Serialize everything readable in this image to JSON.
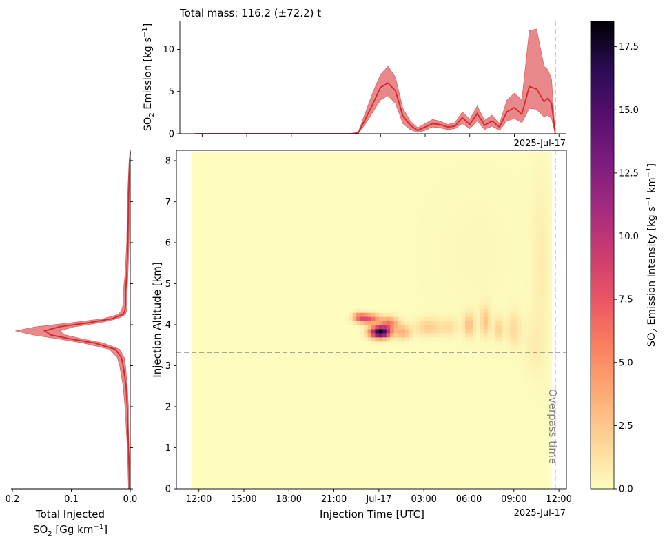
{
  "chart_data": [
    {
      "id": "top",
      "type": "area",
      "title": "Total mass: 116.2 (±72.2) t",
      "ylabel_main": "SO",
      "ylabel_sub": "2",
      "ylabel_rest": " Emission [kg s",
      "ylabel_sup": "−1",
      "ylabel_end": "]",
      "xlim": [
        10.5,
        36.5
      ],
      "ylim": [
        0,
        13.3
      ],
      "yticks": [
        0,
        5,
        10
      ],
      "date_label": "2025-Jul-17",
      "series": [
        {
          "name": "",
          "x": [
            11.5,
            12,
            13,
            14,
            15,
            16,
            17,
            18,
            19,
            20,
            21,
            22,
            22.5,
            23,
            23.5,
            24,
            24.5,
            25,
            25.5,
            26,
            26.5,
            27,
            27.5,
            28,
            28.5,
            29,
            29.5,
            30,
            30.5,
            31,
            31.5,
            32,
            32.5,
            33,
            33.5,
            34,
            34.5,
            35,
            35.25,
            35.5,
            35.75
          ],
          "mean": [
            0,
            0,
            0,
            0,
            0,
            0,
            0,
            0,
            0,
            0,
            0,
            0,
            0.1,
            1.8,
            3.6,
            5.5,
            6.0,
            5.1,
            2.1,
            1.0,
            0.4,
            0.8,
            1.2,
            1.1,
            0.8,
            0.9,
            1.9,
            1.1,
            2.4,
            1.0,
            1.5,
            0.8,
            2.6,
            3.1,
            2.3,
            5.6,
            5.3,
            3.8,
            4.2,
            3.6,
            0
          ],
          "lower": [
            0,
            0,
            0,
            0,
            0,
            0,
            0,
            0,
            0,
            0,
            0,
            0,
            0.05,
            1.2,
            2.6,
            4.0,
            4.5,
            3.6,
            1.2,
            0.5,
            0.15,
            0.4,
            0.8,
            0.7,
            0.5,
            0.6,
            1.2,
            0.6,
            1.5,
            0.5,
            0.9,
            0.4,
            1.5,
            1.8,
            1.3,
            3.0,
            2.9,
            2.0,
            2.2,
            1.8,
            0
          ],
          "upper": [
            0,
            0,
            0,
            0,
            0,
            0,
            0,
            0,
            0,
            0,
            0,
            0,
            0.2,
            2.6,
            5.0,
            7.0,
            8.0,
            6.7,
            3.0,
            1.5,
            0.7,
            1.2,
            1.7,
            1.5,
            1.1,
            1.3,
            2.6,
            1.7,
            3.3,
            1.6,
            2.2,
            1.2,
            4.0,
            4.8,
            4.0,
            12.2,
            12.4,
            8.0,
            7.6,
            6.5,
            0
          ]
        }
      ],
      "colors": {
        "mean": "#d62728",
        "band": "#e8888a"
      }
    },
    {
      "id": "heatmap",
      "type": "heatmap",
      "xlabel": "Injection Time [UTC]",
      "ylabel": "Injection Altitude [km]",
      "xlim": [
        10.5,
        36.5
      ],
      "ylim": [
        0,
        8.25
      ],
      "xticks": [
        {
          "v": 12,
          "label": "12:00"
        },
        {
          "v": 15,
          "label": "15:00"
        },
        {
          "v": 18,
          "label": "18:00"
        },
        {
          "v": 21,
          "label": "21:00"
        },
        {
          "v": 24,
          "label": "Jul-17"
        },
        {
          "v": 27,
          "label": "03:00"
        },
        {
          "v": 30,
          "label": "06:00"
        },
        {
          "v": 33,
          "label": "09:00"
        },
        {
          "v": 36,
          "label": "12:00"
        }
      ],
      "yticks": [
        0,
        1,
        2,
        3,
        4,
        5,
        6,
        7,
        8
      ],
      "date_label": "2025-Jul-17",
      "extent_x": [
        11.5,
        35.3
      ],
      "extent_y": [
        0,
        8.2
      ],
      "overpass_time": 35.75,
      "overpass_label": "Overpass time",
      "reference_altitude": 3.33,
      "blobs": [
        {
          "x": 24.1,
          "y": 3.83,
          "sx": 0.45,
          "sy": 0.1,
          "v": 18.5
        },
        {
          "x": 23.3,
          "y": 4.15,
          "sx": 0.5,
          "sy": 0.08,
          "v": 7.5
        },
        {
          "x": 22.7,
          "y": 4.2,
          "sx": 0.3,
          "sy": 0.07,
          "v": 4.5
        },
        {
          "x": 24.7,
          "y": 4.05,
          "sx": 0.4,
          "sy": 0.1,
          "v": 5.5
        },
        {
          "x": 25.6,
          "y": 3.83,
          "sx": 0.35,
          "sy": 0.12,
          "v": 3.5
        },
        {
          "x": 27.3,
          "y": 3.95,
          "sx": 0.6,
          "sy": 0.15,
          "v": 2.2
        },
        {
          "x": 28.7,
          "y": 3.95,
          "sx": 0.4,
          "sy": 0.15,
          "v": 1.3
        },
        {
          "x": 30.0,
          "y": 4.0,
          "sx": 0.25,
          "sy": 0.2,
          "v": 2.8
        },
        {
          "x": 31.1,
          "y": 4.1,
          "sx": 0.22,
          "sy": 0.25,
          "v": 2.6
        },
        {
          "x": 32.0,
          "y": 3.9,
          "sx": 0.22,
          "sy": 0.2,
          "v": 2.0
        },
        {
          "x": 33.0,
          "y": 3.9,
          "sx": 0.3,
          "sy": 0.3,
          "v": 1.6
        },
        {
          "x": 34.3,
          "y": 3.5,
          "sx": 0.5,
          "sy": 0.5,
          "v": 0.6
        },
        {
          "x": 34.8,
          "y": 5.5,
          "sx": 0.45,
          "sy": 1.6,
          "v": 0.7
        },
        {
          "x": 30.5,
          "y": 5.8,
          "sx": 2.5,
          "sy": 1.4,
          "v": 0.25
        }
      ]
    },
    {
      "id": "left",
      "type": "line",
      "xlabel_line1": "Total Injected",
      "xlabel_main": "SO",
      "xlabel_sub": "2",
      "xlabel_rest": " [Gg km",
      "xlabel_sup": "−1",
      "xlabel_end": "]",
      "xlim": [
        0.2,
        0.0
      ],
      "ylim": [
        0,
        8.25
      ],
      "xticks": [
        {
          "v": 0.2,
          "label": "0.2"
        },
        {
          "v": 0.1,
          "label": "0.1"
        },
        {
          "v": 0.0,
          "label": "0.0"
        }
      ],
      "yticks": [
        0,
        1,
        2,
        3,
        4,
        5,
        6,
        7,
        8
      ],
      "series": [
        {
          "name": "",
          "y": [
            0,
            0.5,
            1,
            1.5,
            2,
            2.5,
            3,
            3.2,
            3.4,
            3.55,
            3.65,
            3.75,
            3.85,
            3.95,
            4.05,
            4.15,
            4.25,
            4.35,
            4.5,
            4.8,
            5.2,
            6,
            7,
            8,
            8.2
          ],
          "mean": [
            0.001,
            0.002,
            0.003,
            0.004,
            0.005,
            0.007,
            0.012,
            0.015,
            0.025,
            0.06,
            0.1,
            0.135,
            0.145,
            0.12,
            0.07,
            0.03,
            0.012,
            0.009,
            0.008,
            0.008,
            0.006,
            0.004,
            0.003,
            0.001,
            0
          ],
          "lower": [
            0,
            0.001,
            0.002,
            0.003,
            0.003,
            0.005,
            0.008,
            0.01,
            0.018,
            0.045,
            0.08,
            0.11,
            0.12,
            0.095,
            0.05,
            0.02,
            0.008,
            0.006,
            0.005,
            0.005,
            0.004,
            0.002,
            0.001,
            0,
            0
          ],
          "upper": [
            0.003,
            0.004,
            0.005,
            0.007,
            0.009,
            0.012,
            0.018,
            0.022,
            0.035,
            0.08,
            0.12,
            0.165,
            0.195,
            0.16,
            0.1,
            0.045,
            0.02,
            0.015,
            0.012,
            0.012,
            0.009,
            0.006,
            0.005,
            0.002,
            0
          ]
        }
      ],
      "colors": {
        "mean": "#d62728",
        "band": "#e8888a"
      }
    },
    {
      "id": "colorbar",
      "type": "colorbar",
      "label_main": "SO",
      "label_sub": "2",
      "label_rest": " Emission Intensity [kg s",
      "label_sup1": "−1",
      "label_mid": " km",
      "label_sup2": "−1",
      "label_end": "]",
      "vmin": 0,
      "vmax": 18.5,
      "ticks": [
        {
          "v": 0,
          "label": "0.0"
        },
        {
          "v": 2.5,
          "label": "2.5"
        },
        {
          "v": 5,
          "label": "5.0"
        },
        {
          "v": 7.5,
          "label": "7.5"
        },
        {
          "v": 10,
          "label": "10.0"
        },
        {
          "v": 12.5,
          "label": "12.5"
        },
        {
          "v": 15,
          "label": "15.0"
        },
        {
          "v": 17.5,
          "label": "17.5"
        }
      ],
      "colormap": "magma_r"
    }
  ]
}
